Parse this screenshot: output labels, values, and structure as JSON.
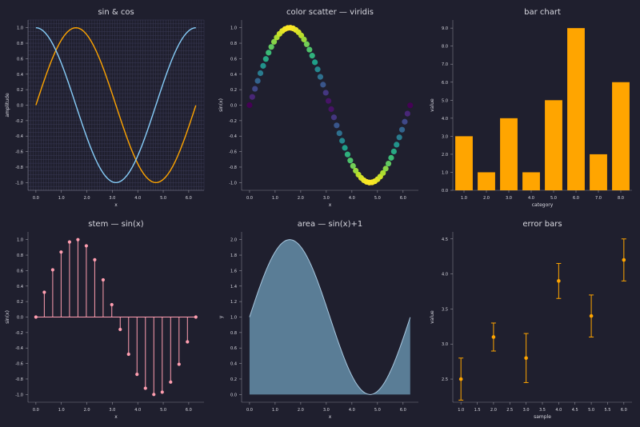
{
  "colors": {
    "background": "#1f1f2e",
    "panel": "#1f1f2e",
    "text": "#d8d8e0",
    "grid": "#3a3a55",
    "sin": "#ffa500",
    "cos": "#87cefa",
    "bar": "#ffa500",
    "stem": "#ff9eb0",
    "area_fill": "#5a7d96",
    "area_line": "#a8c8e0",
    "errorbar": "#ffa500"
  },
  "chart_data": [
    {
      "id": "sincos",
      "type": "line",
      "title": "sin & cos",
      "xlabel": "x",
      "ylabel": "amplitude",
      "xlim": [
        -0.31,
        6.6
      ],
      "ylim": [
        -1.1,
        1.1
      ],
      "xticks": [
        0.0,
        1.0,
        2.0,
        3.0,
        4.0,
        5.0,
        6.0
      ],
      "yticks": [
        -1.0,
        -0.8,
        -0.6,
        -0.4,
        -0.2,
        0.0,
        0.2,
        0.4,
        0.6,
        0.8,
        1.0
      ],
      "grid": true,
      "x": [
        0.0,
        0.33,
        0.66,
        0.99,
        1.32,
        1.65,
        1.98,
        2.31,
        2.64,
        2.98,
        3.31,
        3.64,
        3.97,
        4.3,
        4.63,
        4.96,
        5.29,
        5.62,
        5.95,
        6.28
      ],
      "series": [
        {
          "color": "#ffa500",
          "values": [
            0.0,
            0.32,
            0.61,
            0.84,
            0.97,
            1.0,
            0.92,
            0.74,
            0.48,
            0.16,
            -0.16,
            -0.48,
            -0.74,
            -0.92,
            -1.0,
            -0.97,
            -0.84,
            -0.61,
            -0.32,
            0.0
          ]
        },
        {
          "color": "#87cefa",
          "values": [
            1.0,
            0.95,
            0.79,
            0.55,
            0.25,
            -0.08,
            -0.4,
            -0.68,
            -0.88,
            -0.99,
            -0.99,
            -0.88,
            -0.68,
            -0.4,
            -0.08,
            0.25,
            0.55,
            0.79,
            0.95,
            1.0
          ]
        }
      ]
    },
    {
      "id": "scatter",
      "type": "scatter",
      "title": "color scatter — viridis",
      "xlabel": "x",
      "ylabel": "sin(x)",
      "xlim": [
        -0.31,
        6.6
      ],
      "ylim": [
        -1.1,
        1.1
      ],
      "xticks": [
        0.0,
        1.0,
        2.0,
        3.0,
        4.0,
        5.0,
        6.0
      ],
      "yticks": [
        -1.0,
        -0.8,
        -0.6,
        -0.4,
        -0.2,
        0.0,
        0.2,
        0.4,
        0.6,
        0.8,
        1.0
      ],
      "colormap": "viridis",
      "n_points": 60,
      "x_range": [
        0.0,
        6.28
      ]
    },
    {
      "id": "bars",
      "type": "bar",
      "title": "bar chart",
      "xlabel": "category",
      "ylabel": "value",
      "categories": [
        "1.0",
        "2.0",
        "3.0",
        "4.0",
        "5.0",
        "6.0",
        "7.0",
        "8.0"
      ],
      "values": [
        3,
        1,
        4,
        1,
        5,
        9,
        2,
        6
      ],
      "ylim": [
        0,
        9.45
      ],
      "yticks": [
        0.0,
        1.0,
        2.0,
        3.0,
        4.0,
        5.0,
        6.0,
        7.0,
        8.0,
        9.0
      ]
    },
    {
      "id": "stem",
      "type": "stem",
      "title": "stem — sin(x)",
      "xlabel": "x",
      "ylabel": "sin(x)",
      "xlim": [
        -0.31,
        6.6
      ],
      "ylim": [
        -1.1,
        1.1
      ],
      "xticks": [
        0.0,
        1.0,
        2.0,
        3.0,
        4.0,
        5.0,
        6.0
      ],
      "yticks": [
        -1.0,
        -0.8,
        -0.6,
        -0.4,
        -0.2,
        0.0,
        0.2,
        0.4,
        0.6,
        0.8,
        1.0
      ],
      "x": [
        0.0,
        0.33,
        0.66,
        0.99,
        1.32,
        1.65,
        1.98,
        2.31,
        2.64,
        2.98,
        3.31,
        3.64,
        3.97,
        4.3,
        4.63,
        4.96,
        5.29,
        5.62,
        5.95,
        6.28
      ],
      "values": [
        0.0,
        0.32,
        0.61,
        0.84,
        0.97,
        1.0,
        0.92,
        0.74,
        0.48,
        0.16,
        -0.16,
        -0.48,
        -0.74,
        -0.92,
        -1.0,
        -0.97,
        -0.84,
        -0.61,
        -0.32,
        0.0
      ]
    },
    {
      "id": "area",
      "type": "area",
      "title": "area — sin(x)+1",
      "xlabel": "x",
      "ylabel": "y",
      "xlim": [
        -0.31,
        6.6
      ],
      "ylim": [
        -0.1,
        2.1
      ],
      "xticks": [
        0.0,
        1.0,
        2.0,
        3.0,
        4.0,
        5.0,
        6.0
      ],
      "yticks": [
        0.0,
        0.2,
        0.4,
        0.6,
        0.8,
        1.0,
        1.2,
        1.4,
        1.6,
        1.8,
        2.0
      ],
      "x_range": [
        0.0,
        6.28
      ]
    },
    {
      "id": "errbars",
      "type": "errorbar",
      "title": "error bars",
      "xlabel": "sample",
      "ylabel": "value",
      "xlim": [
        0.75,
        6.25
      ],
      "ylim": [
        2.17,
        4.6
      ],
      "xticks": [
        1.0,
        1.5,
        2.0,
        2.5,
        3.0,
        3.5,
        4.0,
        4.5,
        5.0,
        5.5,
        6.0
      ],
      "yticks": [
        2.5,
        3.0,
        3.5,
        4.0,
        4.5
      ],
      "x": [
        1,
        2,
        3,
        4,
        5,
        6
      ],
      "values": [
        2.5,
        3.1,
        2.8,
        3.9,
        3.4,
        4.2
      ],
      "errors": [
        0.3,
        0.2,
        0.35,
        0.25,
        0.3,
        0.3
      ]
    }
  ]
}
